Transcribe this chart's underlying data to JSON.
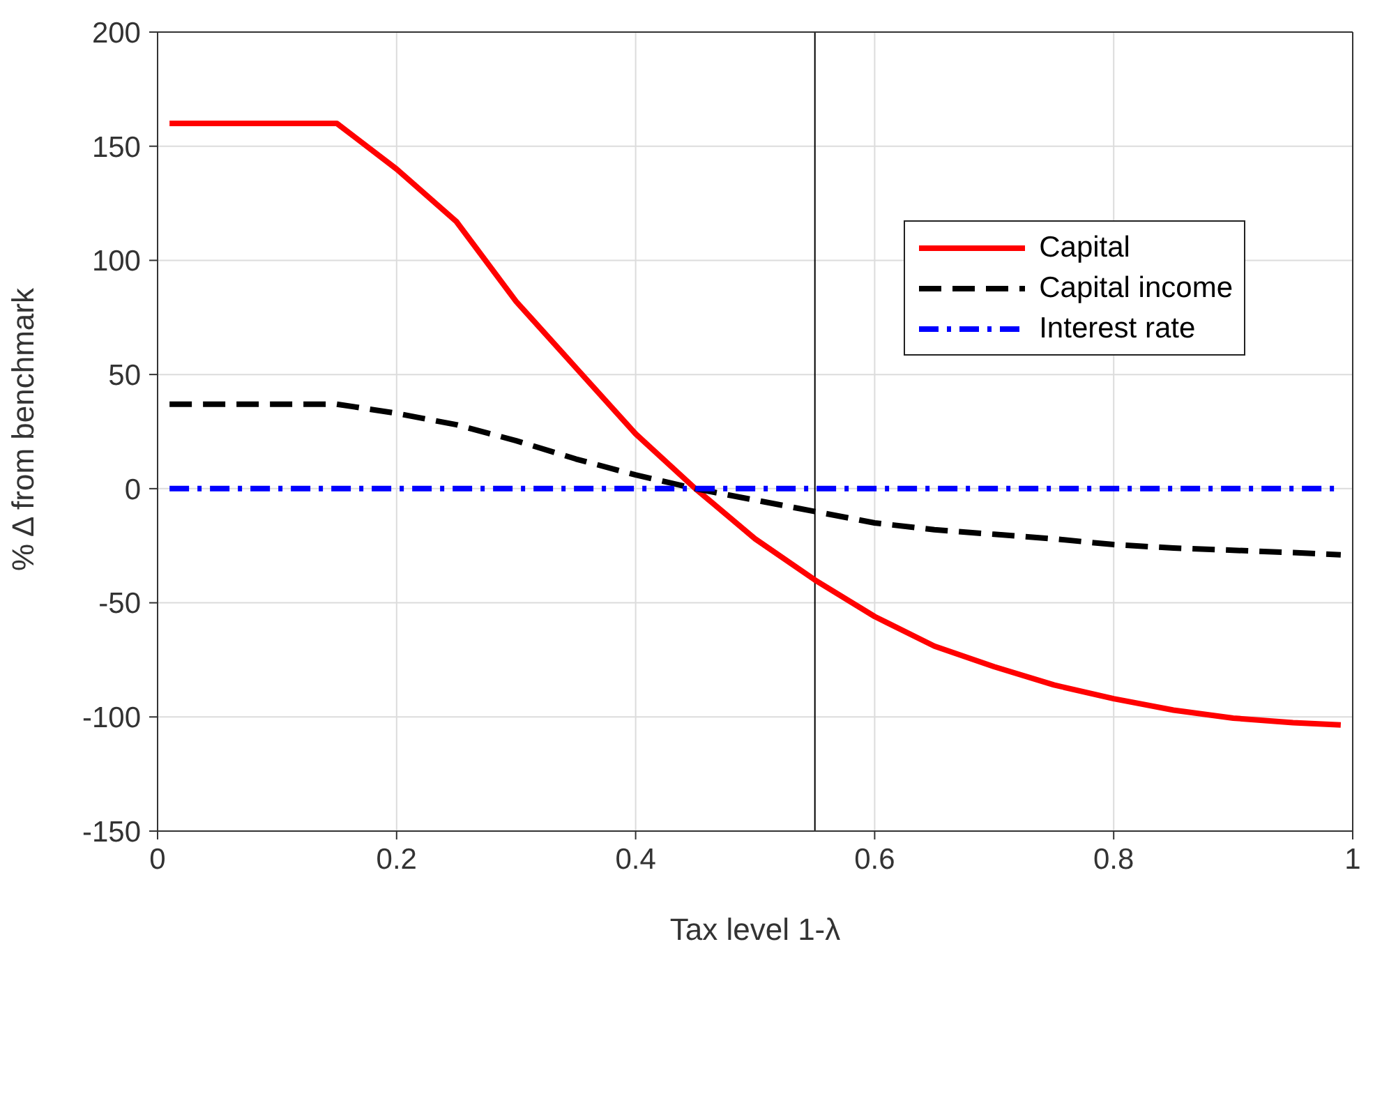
{
  "chart_data": {
    "type": "line",
    "xlabel": "Tax level 1-λ",
    "ylabel": "% Δ from benchmark",
    "x": [
      0.01,
      0.15,
      0.2,
      0.25,
      0.3,
      0.35,
      0.4,
      0.45,
      0.5,
      0.55,
      0.6,
      0.65,
      0.7,
      0.75,
      0.8,
      0.85,
      0.9,
      0.95,
      0.99
    ],
    "series": [
      {
        "name": "Capital",
        "color": "#ff0000",
        "line_style": "solid",
        "values": [
          160,
          160,
          140,
          117,
          82,
          53,
          24,
          0,
          -22,
          -40,
          -56,
          -69,
          -78,
          -86,
          -92,
          -97,
          -100.5,
          -102.5,
          -103.5
        ]
      },
      {
        "name": "Capital income",
        "color": "#000000",
        "line_style": "dashed",
        "values": [
          37,
          37,
          33,
          28,
          21,
          13,
          6,
          0,
          -5,
          -10,
          -15,
          -18,
          -20,
          -22,
          -24.5,
          -26,
          -27,
          -28,
          -29
        ]
      },
      {
        "name": "Interest rate",
        "color": "#0000ff",
        "line_style": "dashdot",
        "values": [
          0,
          0,
          0,
          0,
          0,
          0,
          0,
          0,
          0,
          0,
          0,
          0,
          0,
          0,
          0,
          0,
          0,
          0,
          0
        ]
      }
    ],
    "xlim": [
      0,
      1
    ],
    "xticks": [
      0,
      0.2,
      0.4,
      0.6,
      0.8,
      1
    ],
    "ylim": [
      -150,
      200
    ],
    "yticks": [
      -150,
      -100,
      -50,
      0,
      50,
      100,
      150,
      200
    ],
    "ref_lines": [
      {
        "axis": "x",
        "value": 0.55,
        "color": "#000000"
      }
    ],
    "grid": true,
    "legend": "top right",
    "marker": "none"
  }
}
